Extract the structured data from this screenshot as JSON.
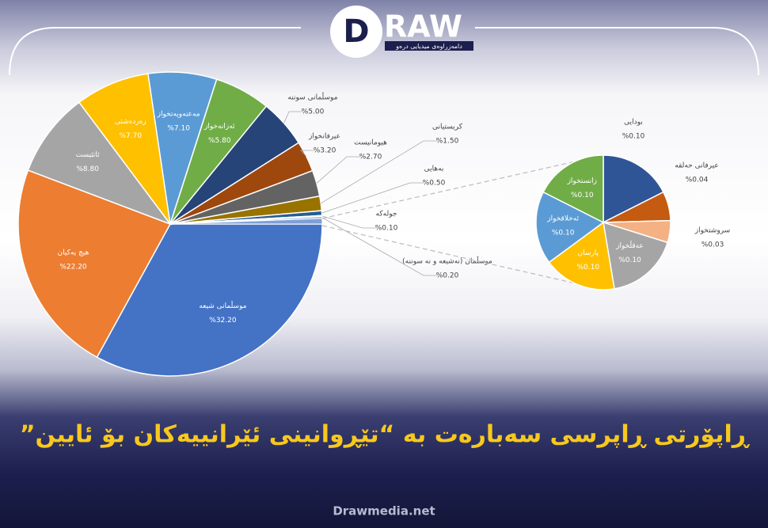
{
  "header": {
    "logo_letter": "D",
    "logo_text": "RAW",
    "logo_tagline": "دامەزراوەی میدیایی درەو"
  },
  "chart_data": {
    "type": "pie",
    "title": "ڕاپۆرتی ڕاپرسی سەبارەت بە “تێڕوانینی ئێرانییەکان بۆ ئایین”",
    "categories": [
      "موسڵمانی شیعە",
      "هیچ یەکیان",
      "ئاتئیست",
      "زەردەشتی",
      "مەعنەویەتخواز",
      "ئەزانەخواز",
      "موسڵمانی سوننە",
      "عیرفانخواز",
      "هیومانیست",
      "کریستیانی",
      "بەهایی",
      "جولەکە",
      "موسڵمان (نەشیعە و نە سوننە)"
    ],
    "values": [
      32.2,
      22.2,
      8.8,
      7.7,
      7.1,
      5.8,
      5.0,
      3.2,
      2.7,
      1.5,
      0.5,
      0.1,
      0.2
    ],
    "value_labels": [
      "%32.20",
      "%22.20",
      "%8.80",
      "%7.70",
      "%7.10",
      "%5.80",
      "%5.00",
      "%3.20",
      "%2.70",
      "%1.50",
      "%0.50",
      "%0.10",
      "%0.20"
    ],
    "colors": [
      "#4472c4",
      "#ed7d31",
      "#a5a5a5",
      "#ffc000",
      "#5b9bd5",
      "#70ad47",
      "#264478",
      "#9e480e",
      "#636363",
      "#997300",
      "#255e91",
      "#43682b",
      "#698ed0"
    ],
    "sub": {
      "categories": [
        "بودایی",
        "عیرفانی حەلقە",
        "سروشتخواز",
        "عەقڵخواز",
        "پارسان",
        "ئەخلاقخواز",
        "زانستخواز"
      ],
      "values": [
        0.1,
        0.04,
        0.03,
        0.1,
        0.1,
        0.1,
        0.1
      ],
      "value_labels": [
        "%0.10",
        "%0.04",
        "%0.03",
        "%0.10",
        "%0.10",
        "%0.10",
        "%0.10"
      ],
      "colors": [
        "#2f5597",
        "#c55a11",
        "#f4b183",
        "#a5a5a5",
        "#ffc000",
        "#5b9bd5",
        "#70ad47"
      ]
    }
  },
  "footer": {
    "site": "Drawmedia.net"
  }
}
